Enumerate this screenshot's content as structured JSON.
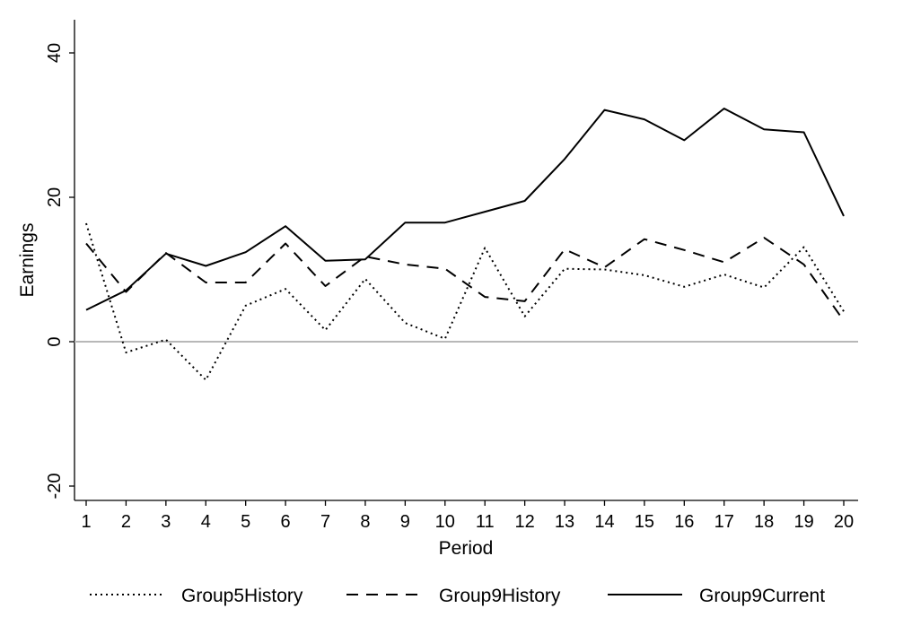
{
  "chart_data": {
    "type": "line",
    "title": "",
    "xlabel": "Period",
    "ylabel": "Earnings",
    "x": [
      1,
      2,
      3,
      4,
      5,
      6,
      7,
      8,
      9,
      10,
      11,
      12,
      13,
      14,
      15,
      16,
      17,
      18,
      19,
      20
    ],
    "xlim": [
      1,
      20
    ],
    "ylim": [
      -20,
      40
    ],
    "yticks": [
      "-20",
      "0",
      "20",
      "40"
    ],
    "xticks": [
      "1",
      "2",
      "3",
      "4",
      "5",
      "6",
      "7",
      "8",
      "9",
      "10",
      "11",
      "12",
      "13",
      "14",
      "15",
      "16",
      "17",
      "18",
      "19",
      "20"
    ],
    "reference_line": 0,
    "grid": false,
    "legend_position": "bottom",
    "series": [
      {
        "name": "Group5History",
        "style": "dotted",
        "color": "#000000",
        "values": [
          16.4,
          -1.5,
          0.3,
          -5.3,
          5.0,
          7.3,
          1.6,
          8.7,
          2.6,
          0.4,
          13.0,
          3.5,
          10.1,
          10.0,
          9.2,
          7.6,
          9.3,
          7.5,
          13.1,
          4.2
        ]
      },
      {
        "name": "Group9History",
        "style": "dashed",
        "color": "#000000",
        "values": [
          13.6,
          6.9,
          12.3,
          8.2,
          8.2,
          13.6,
          7.7,
          11.8,
          10.7,
          10.1,
          6.2,
          5.6,
          12.8,
          10.3,
          14.2,
          12.7,
          11.0,
          14.4,
          10.7,
          2.9
        ]
      },
      {
        "name": "Group9Current",
        "style": "solid",
        "color": "#000000",
        "values": [
          4.4,
          7.1,
          12.2,
          10.5,
          12.4,
          16.0,
          11.2,
          11.4,
          16.5,
          16.5,
          18.0,
          19.5,
          25.3,
          32.1,
          30.8,
          27.9,
          32.3,
          29.4,
          29.0,
          17.4
        ]
      }
    ]
  }
}
